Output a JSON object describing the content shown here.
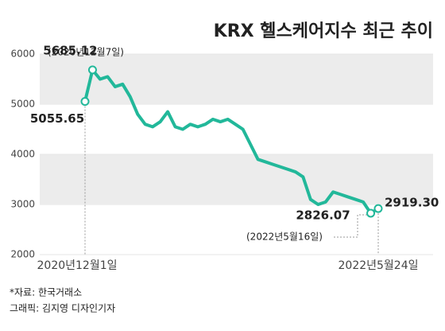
{
  "chart_data": {
    "type": "line",
    "title": "KRX 헬스케어지수 최근 추이",
    "categories": [
      "2020년12월1일",
      null,
      null,
      null,
      null,
      null,
      null,
      null,
      null,
      null,
      null,
      null,
      null,
      null,
      null,
      null,
      null,
      null,
      null,
      null,
      null,
      null,
      null,
      null,
      null,
      null,
      null,
      null,
      null,
      null,
      null,
      null,
      null,
      null,
      null,
      null,
      null,
      null,
      null,
      "2022년5월24일"
    ],
    "series": [
      {
        "name": null,
        "color": "#22b89a",
        "values": [
          5055.65,
          5685.12,
          5500,
          5550,
          5350,
          5400,
          5150,
          4800,
          4600,
          4550,
          4650,
          4850,
          4550,
          4500,
          4600,
          4550,
          4600,
          4700,
          4650,
          4700,
          4600,
          4500,
          4200,
          3900,
          3850,
          3800,
          3750,
          3700,
          3650,
          3550,
          3100,
          3000,
          3050,
          3250,
          3200,
          3150,
          3100,
          3050,
          2826.07,
          2919.3
        ],
        "value_labels": [
          "5055.65",
          "5685.12",
          null,
          null,
          null,
          null,
          null,
          null,
          null,
          null,
          null,
          null,
          null,
          null,
          null,
          null,
          null,
          null,
          null,
          null,
          null,
          null,
          null,
          null,
          null,
          null,
          null,
          null,
          null,
          null,
          null,
          null,
          null,
          null,
          null,
          null,
          null,
          null,
          "2826.07",
          "2919.30"
        ]
      }
    ],
    "annotations": [
      "(2020년12월7일)",
      "(2022년5월16일)"
    ],
    "ylim": [
      2000,
      6000
    ],
    "yticks": [
      2000,
      3000,
      4000,
      5000,
      6000
    ],
    "source": "*자료: 한국거래소",
    "credit": "그래픽: 김지영 디자인기자"
  }
}
